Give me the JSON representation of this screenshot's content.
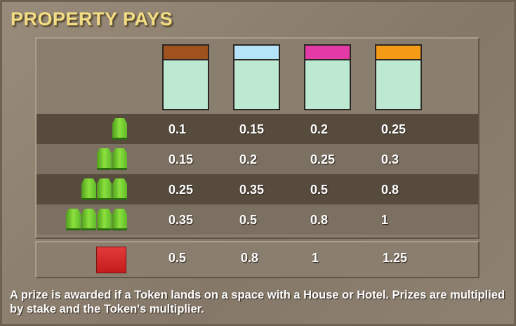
{
  "title": "PROPERTY PAYS",
  "columns": [
    {
      "color": "#a0521e"
    },
    {
      "color": "#b5e3f7"
    },
    {
      "color": "#e43aa7"
    },
    {
      "color": "#f59a17"
    }
  ],
  "rows": [
    {
      "houses": 1,
      "values": [
        "0.1",
        "0.15",
        "0.2",
        "0.25"
      ]
    },
    {
      "houses": 2,
      "values": [
        "0.15",
        "0.2",
        "0.25",
        "0.3"
      ]
    },
    {
      "houses": 3,
      "values": [
        "0.25",
        "0.35",
        "0.5",
        "0.8"
      ]
    },
    {
      "houses": 4,
      "values": [
        "0.35",
        "0.5",
        "0.8",
        "1"
      ]
    }
  ],
  "hotel": {
    "icon": "hotel-icon",
    "values": [
      "0.5",
      "0.8",
      "1",
      "1.25"
    ]
  },
  "note": "A prize is awarded if a Token lands on a space with a House or Hotel. Prizes are multiplied by stake and the Token's multiplier."
}
